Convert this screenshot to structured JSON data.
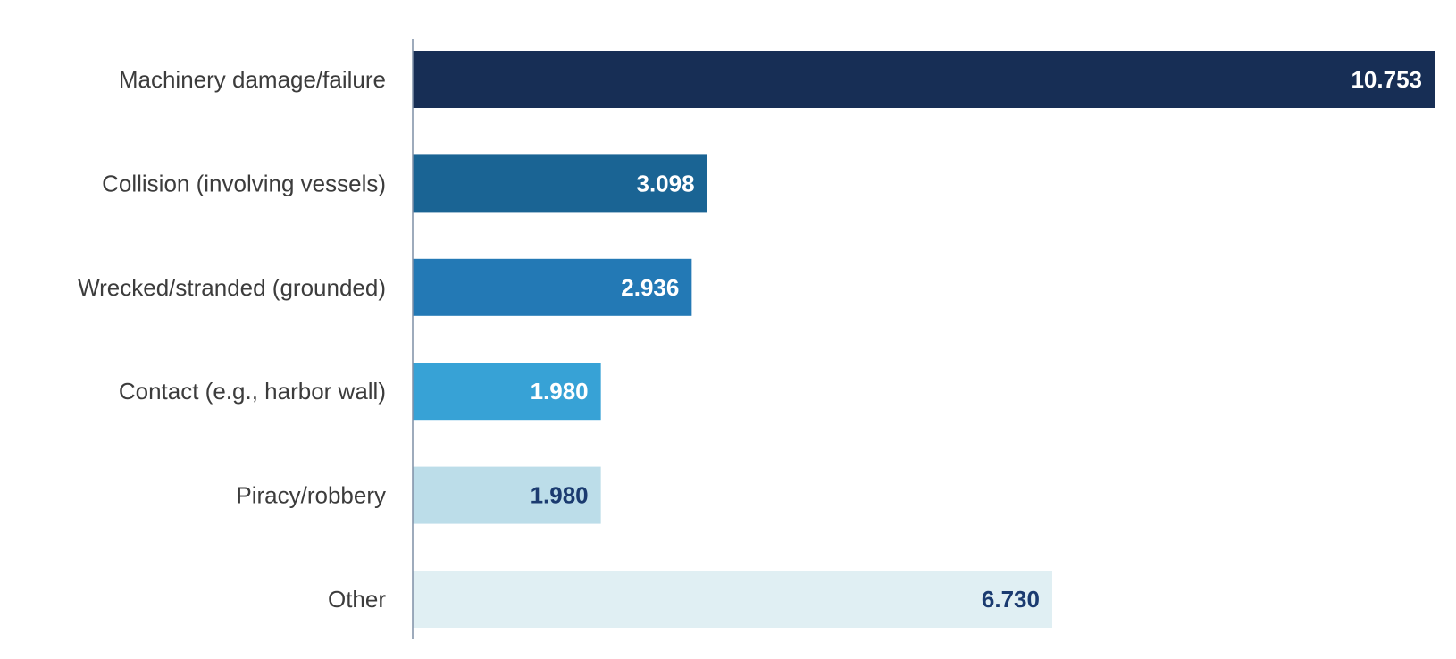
{
  "chart_data": {
    "type": "bar",
    "orientation": "horizontal",
    "categories": [
      "Machinery damage/failure",
      "Collision (involving vessels)",
      "Wrecked/stranded (grounded)",
      "Contact (e.g., harbor wall)",
      "Piracy/robbery",
      "Other"
    ],
    "values": [
      10753,
      3098,
      2936,
      1980,
      1980,
      6730
    ],
    "value_labels": [
      "10.753",
      "3.098",
      "2.936",
      "1.980",
      "1.980",
      "6.730"
    ],
    "title": "",
    "xlabel": "",
    "ylabel": "",
    "xlim": [
      0,
      10753
    ],
    "grid": false,
    "legend": "none",
    "bar_colors": [
      "#172e55",
      "#1a6494",
      "#2379b5",
      "#37a2d6",
      "#bcdde9",
      "#e0eff3"
    ],
    "value_label_colors": [
      "#ffffff",
      "#ffffff",
      "#ffffff",
      "#ffffff",
      "#1b3b70",
      "#1b3b70"
    ],
    "axis_color": "#7f8fa6"
  }
}
